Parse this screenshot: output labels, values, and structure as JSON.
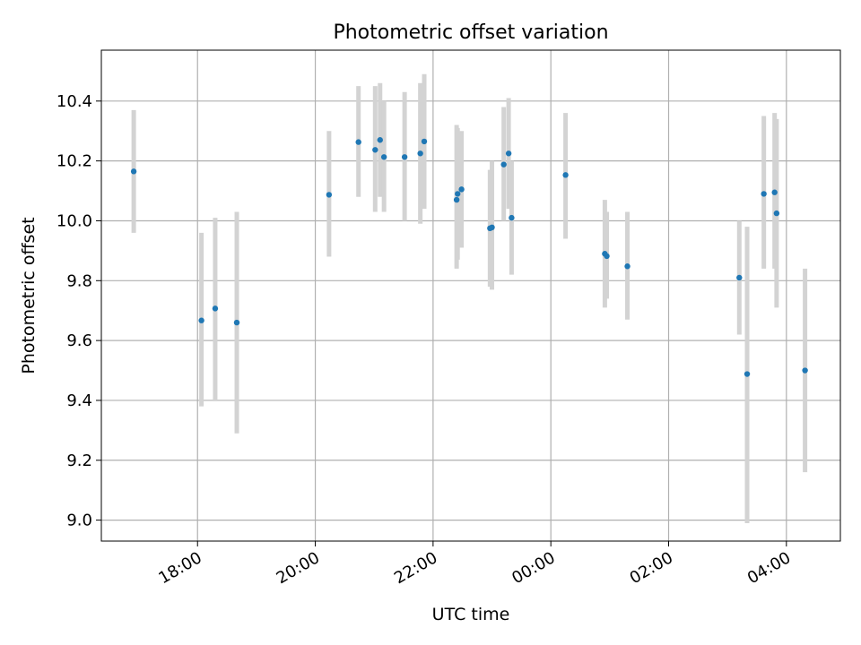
{
  "chart_data": {
    "type": "scatter",
    "title": "Photometric offset variation",
    "xlabel": "UTC time",
    "ylabel": "Photometric offset",
    "x_axis": {
      "kind": "time",
      "range": [
        "16:22",
        "04:55"
      ],
      "ticks": [
        "18:00",
        "20:00",
        "22:00",
        "00:00",
        "02:00",
        "04:00"
      ],
      "tick_label_rotation": -30
    },
    "y_axis": {
      "range": [
        8.93,
        10.57
      ],
      "ticks": [
        "9.0",
        "9.2",
        "9.4",
        "9.6",
        "9.8",
        "10.0",
        "10.2",
        "10.4"
      ]
    },
    "grid": true,
    "legend": "none",
    "colors": {
      "point": "#1f77b4",
      "errorbar": "#d3d3d3",
      "grid": "#b0b0b0"
    },
    "series": [
      {
        "points": [
          {
            "x": "16:55",
            "y": 10.165,
            "ylow": 9.96,
            "yhigh": 10.37
          },
          {
            "x": "18:04",
            "y": 9.667,
            "ylow": 9.38,
            "yhigh": 9.96
          },
          {
            "x": "18:18",
            "y": 9.707,
            "ylow": 9.4,
            "yhigh": 10.01
          },
          {
            "x": "18:40",
            "y": 9.66,
            "ylow": 9.29,
            "yhigh": 10.03
          },
          {
            "x": "20:14",
            "y": 10.087,
            "ylow": 9.88,
            "yhigh": 10.3
          },
          {
            "x": "20:44",
            "y": 10.263,
            "ylow": 10.08,
            "yhigh": 10.45
          },
          {
            "x": "21:01",
            "y": 10.237,
            "ylow": 10.03,
            "yhigh": 10.45
          },
          {
            "x": "21:06",
            "y": 10.27,
            "ylow": 10.08,
            "yhigh": 10.46
          },
          {
            "x": "21:10",
            "y": 10.213,
            "ylow": 10.03,
            "yhigh": 10.4
          },
          {
            "x": "21:31",
            "y": 10.213,
            "ylow": 10.0,
            "yhigh": 10.43
          },
          {
            "x": "21:47",
            "y": 10.225,
            "ylow": 9.99,
            "yhigh": 10.46
          },
          {
            "x": "21:51",
            "y": 10.265,
            "ylow": 10.04,
            "yhigh": 10.49
          },
          {
            "x": "22:24",
            "y": 10.07,
            "ylow": 9.84,
            "yhigh": 10.32
          },
          {
            "x": "22:25",
            "y": 10.09,
            "ylow": 9.87,
            "yhigh": 10.31
          },
          {
            "x": "22:29",
            "y": 10.105,
            "ylow": 9.91,
            "yhigh": 10.3
          },
          {
            "x": "22:58",
            "y": 9.975,
            "ylow": 9.78,
            "yhigh": 10.17
          },
          {
            "x": "23:00",
            "y": 9.978,
            "ylow": 9.77,
            "yhigh": 10.2
          },
          {
            "x": "23:12",
            "y": 10.188,
            "ylow": 10.0,
            "yhigh": 10.38
          },
          {
            "x": "23:17",
            "y": 10.225,
            "ylow": 10.04,
            "yhigh": 10.41
          },
          {
            "x": "23:20",
            "y": 10.01,
            "ylow": 9.82,
            "yhigh": 10.2
          },
          {
            "x": "00:15",
            "y": 10.153,
            "ylow": 9.94,
            "yhigh": 10.36
          },
          {
            "x": "00:55",
            "y": 9.89,
            "ylow": 9.71,
            "yhigh": 10.07
          },
          {
            "x": "00:57",
            "y": 9.882,
            "ylow": 9.74,
            "yhigh": 10.03
          },
          {
            "x": "01:18",
            "y": 9.848,
            "ylow": 9.67,
            "yhigh": 10.03
          },
          {
            "x": "03:12",
            "y": 9.81,
            "ylow": 9.62,
            "yhigh": 10.0
          },
          {
            "x": "03:20",
            "y": 9.488,
            "ylow": 8.99,
            "yhigh": 9.98
          },
          {
            "x": "03:37",
            "y": 10.09,
            "ylow": 9.84,
            "yhigh": 10.35
          },
          {
            "x": "03:48",
            "y": 10.095,
            "ylow": 9.84,
            "yhigh": 10.36
          },
          {
            "x": "03:50",
            "y": 10.025,
            "ylow": 9.71,
            "yhigh": 10.34
          },
          {
            "x": "04:19",
            "y": 9.5,
            "ylow": 9.16,
            "yhigh": 9.84
          }
        ]
      }
    ]
  }
}
